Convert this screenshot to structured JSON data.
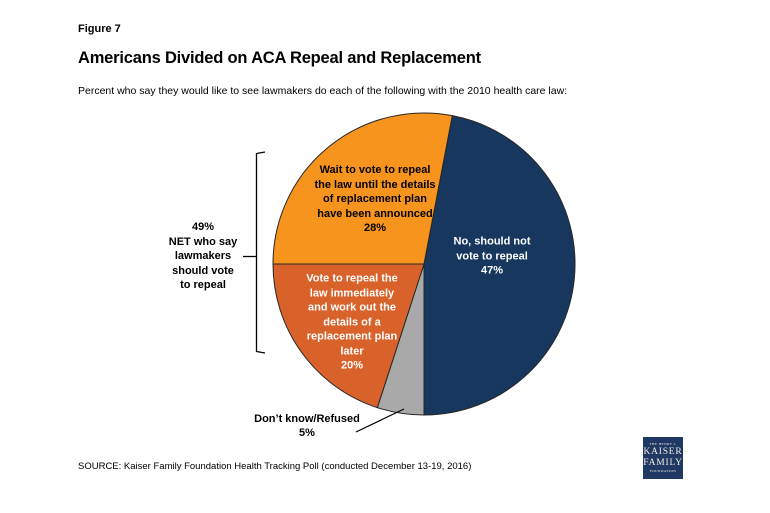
{
  "figure_label": "Figure 7",
  "title": "Americans Divided on ACA Repeal and Replacement",
  "subtitle": "Percent who say they would like to see lawmakers do each of the following with the 2010 health care law:",
  "source": "SOURCE: Kaiser Family Foundation Health Tracking Poll (conducted December 13-19, 2016)",
  "logo": {
    "line1": "THE HENRY J.",
    "line2": "KAISER",
    "line3": "FAMILY",
    "line4": "FOUNDATION",
    "bg_color": "#1F3864"
  },
  "chart_data": {
    "type": "pie",
    "title": "Americans Divided on ACA Repeal and Replacement",
    "subtitle": "Percent who say they would like to see lawmakers do each of the following with the 2010 health care law:",
    "start_angle_deg": 10.8,
    "slice_outline_color": "#262626",
    "slices": [
      {
        "id": "no-repeal",
        "label": "No, should not vote to repeal",
        "value": 47,
        "color": "#17375E",
        "text_color": "#FFFFFF",
        "display": "No, should not\nvote to repeal\n47%"
      },
      {
        "id": "dont-know",
        "label": "Don’t know/Refused",
        "value": 5,
        "color": "#A9A9A9",
        "text_color": "#000000",
        "display": "Don’t know/Refused\n5%"
      },
      {
        "id": "repeal-immediately",
        "label": "Vote to repeal the law immediately and work out the details of a replacement plan later",
        "value": 20,
        "color": "#D9622B",
        "text_color": "#FFFFFF",
        "display": "Vote to repeal the\nlaw immediately\nand work out the\ndetails of a\nreplacement plan\nlater\n20%"
      },
      {
        "id": "wait-to-vote",
        "label": "Wait to vote to repeal the law until the details of replacement plan have been announced",
        "value": 28,
        "color": "#F7941E",
        "text_color": "#000000",
        "display": "Wait to vote to repeal\nthe law until the details\nof replacement plan\nhave been announced\n28%"
      }
    ],
    "net_annotation": {
      "value": 49,
      "label": "NET who say lawmakers should vote to repeal",
      "display": "49%\nNET who say\nlawmakers\nshould vote\nto repeal"
    }
  }
}
